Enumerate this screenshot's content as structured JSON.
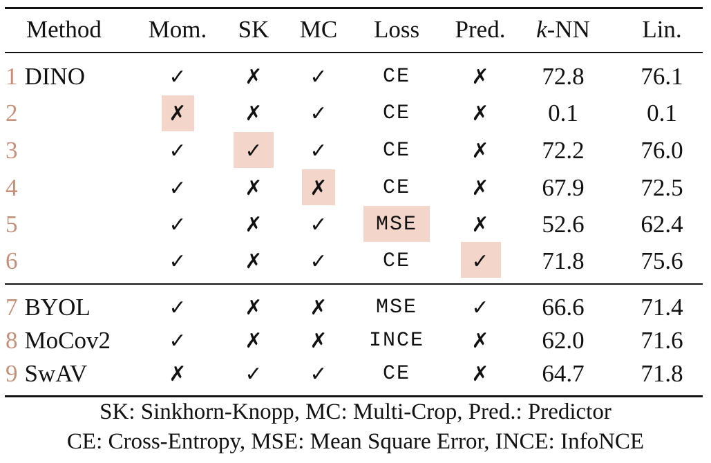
{
  "header": {
    "method": "Method",
    "mom": "Mom.",
    "sk": "SK",
    "mc": "MC",
    "loss": "Loss",
    "pred": "Pred.",
    "knn_k": "k",
    "knn_rest": "-NN",
    "lin": "Lin."
  },
  "symbols": {
    "check": "✓",
    "cross": "✗"
  },
  "rows": [
    {
      "num": "1",
      "method": "DINO",
      "mom": "✓",
      "sk": "✗",
      "mc": "✓",
      "loss": "CE",
      "pred": "✗",
      "knn": "72.8",
      "lin": "76.1"
    },
    {
      "num": "2",
      "method": "",
      "mom": "✗",
      "sk": "✗",
      "mc": "✓",
      "loss": "CE",
      "pred": "✗",
      "knn": "0.1",
      "lin": "0.1"
    },
    {
      "num": "3",
      "method": "",
      "mom": "✓",
      "sk": "✓",
      "mc": "✓",
      "loss": "CE",
      "pred": "✗",
      "knn": "72.2",
      "lin": "76.0"
    },
    {
      "num": "4",
      "method": "",
      "mom": "✓",
      "sk": "✗",
      "mc": "✗",
      "loss": "CE",
      "pred": "✗",
      "knn": "67.9",
      "lin": "72.5"
    },
    {
      "num": "5",
      "method": "",
      "mom": "✓",
      "sk": "✗",
      "mc": "✓",
      "loss": "MSE",
      "pred": "✗",
      "knn": "52.6",
      "lin": "62.4"
    },
    {
      "num": "6",
      "method": "",
      "mom": "✓",
      "sk": "✗",
      "mc": "✓",
      "loss": "CE",
      "pred": "✓",
      "knn": "71.8",
      "lin": "75.6"
    },
    {
      "num": "7",
      "method": "BYOL",
      "mom": "✓",
      "sk": "✗",
      "mc": "✗",
      "loss": "MSE",
      "pred": "✓",
      "knn": "66.6",
      "lin": "71.4"
    },
    {
      "num": "8",
      "method": "MoCov2",
      "mom": "✓",
      "sk": "✗",
      "mc": "✗",
      "loss": "INCE",
      "pred": "✗",
      "knn": "62.0",
      "lin": "71.6"
    },
    {
      "num": "9",
      "method": "SwAV",
      "mom": "✗",
      "sk": "✓",
      "mc": "✓",
      "loss": "CE",
      "pred": "✗",
      "knn": "64.7",
      "lin": "71.8"
    }
  ],
  "highlight_color": "#f3d5ca",
  "number_color": "#c4907a",
  "footer": {
    "line1": "SK: Sinkhorn-Knopp, MC: Multi-Crop, Pred.: Predictor",
    "line2": "CE: Cross-Entropy, MSE: Mean Square Error, INCE: InfoNCE"
  }
}
